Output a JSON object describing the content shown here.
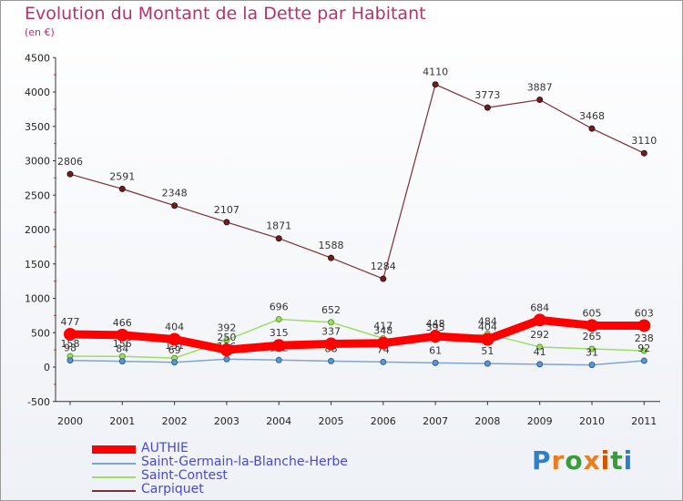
{
  "header": {
    "title": "Evolution du Montant de la Dette par Habitant",
    "subtitle": "(en €)"
  },
  "logo": {
    "text": "Proxiti"
  },
  "colors": {
    "title": "#b3336b",
    "AUTHIE": "#ff0000",
    "Saint-Germain-la-Blanche-Herbe": "#7fa6cf",
    "Saint-Contest": "#9fdc66",
    "Carpiquet": "#7a3038"
  },
  "chart_data": {
    "type": "line",
    "title": "Evolution du Montant de la Dette par Habitant",
    "subtitle": "(en €)",
    "x": [
      "2000",
      "2001",
      "2002",
      "2003",
      "2004",
      "2005",
      "2006",
      "2007",
      "2008",
      "2009",
      "2010",
      "2011"
    ],
    "ylim": [
      -500,
      4500
    ],
    "yticks": [
      "-500",
      "0",
      "500",
      "1000",
      "1500",
      "2000",
      "2500",
      "3000",
      "3500",
      "4000",
      "4500"
    ],
    "grid": false,
    "legend_position": "bottom-left",
    "series": [
      {
        "name": "Carpiquet",
        "values": [
          2806,
          2591,
          2348,
          2107,
          1871,
          1588,
          1284,
          4110,
          3773,
          3887,
          3468,
          3110
        ],
        "labels": [
          "2806",
          "2591",
          "2348",
          "2107",
          "1871",
          "1588",
          "1284",
          "4110",
          "3773",
          "3887",
          "3468",
          "3110"
        ]
      },
      {
        "name": "Saint-Contest",
        "values": [
          158,
          156,
          131,
          392,
          696,
          652,
          417,
          395,
          484,
          292,
          265,
          238
        ],
        "labels": [
          "158",
          "156",
          "131",
          "392",
          "696",
          "652",
          "417",
          "395",
          "484",
          "292",
          "265",
          "238"
        ]
      },
      {
        "name": "Saint-Germain-la-Blanche-Herbe",
        "values": [
          98,
          84,
          69,
          116,
          102,
          88,
          74,
          61,
          51,
          41,
          31,
          92
        ],
        "labels": [
          "98",
          "84",
          "69",
          "116",
          "102",
          "88",
          "74",
          "61",
          "51",
          "41",
          "31",
          "92"
        ]
      },
      {
        "name": "AUTHIE",
        "values": [
          477,
          466,
          404,
          250,
          315,
          337,
          348,
          448,
          404,
          684,
          605,
          603
        ],
        "labels": [
          "477",
          "466",
          "404",
          "250",
          "315",
          "337",
          "348",
          "448",
          "404",
          "684",
          "605",
          "603"
        ]
      }
    ]
  },
  "legend": [
    {
      "name": "AUTHIE"
    },
    {
      "name": "Saint-Germain-la-Blanche-Herbe"
    },
    {
      "name": "Saint-Contest"
    },
    {
      "name": "Carpiquet"
    }
  ]
}
